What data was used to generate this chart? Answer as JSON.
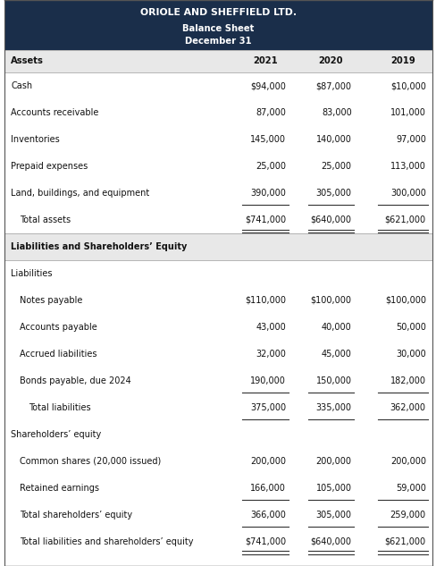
{
  "title_line1": "ORIOLE AND SHEFFIELD LTD.",
  "title_line2": "Balance Sheet",
  "title_line3": "December 31",
  "header_bg": "#1a2e4a",
  "header_text_color": "#ffffff",
  "col_header_bg": "#e8e8e8",
  "section_header_bg": "#e8e8e8",
  "col_headers": [
    "Assets",
    "2021",
    "2020",
    "2019"
  ],
  "rows": [
    {
      "label": "Cash",
      "vals": [
        "$94,000",
        "$87,000",
        "$10,000"
      ],
      "indent": 0,
      "bold": false,
      "underline": false,
      "double_underline": false
    },
    {
      "label": "Accounts receivable",
      "vals": [
        "87,000",
        "83,000",
        "101,000"
      ],
      "indent": 0,
      "bold": false,
      "underline": false,
      "double_underline": false
    },
    {
      "label": "Inventories",
      "vals": [
        "145,000",
        "140,000",
        "97,000"
      ],
      "indent": 0,
      "bold": false,
      "underline": false,
      "double_underline": false
    },
    {
      "label": "Prepaid expenses",
      "vals": [
        "25,000",
        "25,000",
        "113,000"
      ],
      "indent": 0,
      "bold": false,
      "underline": false,
      "double_underline": false
    },
    {
      "label": "Land, buildings, and equipment",
      "vals": [
        "390,000",
        "305,000",
        "300,000"
      ],
      "indent": 0,
      "bold": false,
      "underline": true,
      "double_underline": false
    },
    {
      "label": "   Total assets",
      "vals": [
        "$741,000",
        "$640,000",
        "$621,000"
      ],
      "indent": 1,
      "bold": false,
      "underline": false,
      "double_underline": true
    },
    {
      "label": "SECTION:Liabilities and Shareholders’ Equity",
      "vals": [
        "",
        "",
        ""
      ],
      "indent": 0,
      "bold": true,
      "underline": false,
      "double_underline": false
    },
    {
      "label": "Liabilities",
      "vals": [
        "",
        "",
        ""
      ],
      "indent": 0,
      "bold": false,
      "underline": false,
      "double_underline": false
    },
    {
      "label": "  Notes payable",
      "vals": [
        "$110,000",
        "$100,000",
        "$100,000"
      ],
      "indent": 1,
      "bold": false,
      "underline": false,
      "double_underline": false
    },
    {
      "label": "  Accounts payable",
      "vals": [
        "43,000",
        "40,000",
        "50,000"
      ],
      "indent": 1,
      "bold": false,
      "underline": false,
      "double_underline": false
    },
    {
      "label": "  Accrued liabilities",
      "vals": [
        "32,000",
        "45,000",
        "30,000"
      ],
      "indent": 1,
      "bold": false,
      "underline": false,
      "double_underline": false
    },
    {
      "label": "  Bonds payable, due 2024",
      "vals": [
        "190,000",
        "150,000",
        "182,000"
      ],
      "indent": 1,
      "bold": false,
      "underline": true,
      "double_underline": false
    },
    {
      "label": "    Total liabilities",
      "vals": [
        "375,000",
        "335,000",
        "362,000"
      ],
      "indent": 2,
      "bold": false,
      "underline": true,
      "double_underline": false
    },
    {
      "label": "Shareholders’ equity",
      "vals": [
        "",
        "",
        ""
      ],
      "indent": 0,
      "bold": false,
      "underline": false,
      "double_underline": false
    },
    {
      "label": "  Common shares (20,000 issued)",
      "vals": [
        "200,000",
        "200,000",
        "200,000"
      ],
      "indent": 1,
      "bold": false,
      "underline": false,
      "double_underline": false
    },
    {
      "label": "  Retained earnings",
      "vals": [
        "166,000",
        "105,000",
        "59,000"
      ],
      "indent": 1,
      "bold": false,
      "underline": true,
      "double_underline": false
    },
    {
      "label": "  Total shareholders’ equity",
      "vals": [
        "366,000",
        "305,000",
        "259,000"
      ],
      "indent": 1,
      "bold": false,
      "underline": true,
      "double_underline": false
    },
    {
      "label": "  Total liabilities and shareholders’ equity",
      "vals": [
        "$741,000",
        "$640,000",
        "$621,000"
      ],
      "indent": 1,
      "bold": false,
      "underline": false,
      "double_underline": true
    }
  ],
  "figsize": [
    4.89,
    6.33
  ],
  "dpi": 100
}
